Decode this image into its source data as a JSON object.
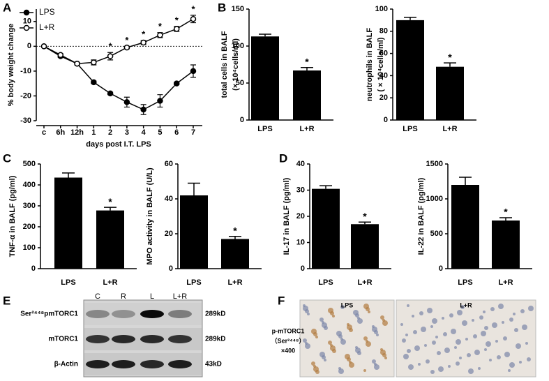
{
  "chart_data": [
    {
      "type": "line",
      "xlabel": "days post I.T. LPS",
      "ylabel": "% body weight change",
      "categories": [
        "c",
        "6h",
        "12h",
        "1",
        "2",
        "3",
        "4",
        "5",
        "6",
        "7"
      ],
      "series": [
        {
          "name": "LPS",
          "color": "#000000",
          "marker": "filled",
          "values": [
            0,
            -4,
            -7,
            -14.5,
            -19,
            -22.5,
            -25.5,
            -22,
            -15,
            -10
          ],
          "errors": [
            0,
            0.5,
            0.5,
            0.5,
            0.5,
            2,
            2,
            2.5,
            0.5,
            2.5
          ]
        },
        {
          "name": "L+R",
          "color": "#000000",
          "marker": "open",
          "values": [
            0,
            -3.5,
            -7,
            -6.5,
            -4,
            -0.5,
            1.5,
            4.5,
            7,
            11
          ],
          "errors": [
            0,
            0.5,
            0.5,
            1,
            1.5,
            0.5,
            0.8,
            1,
            1,
            1.5
          ]
        }
      ],
      "significance": [
        null,
        null,
        null,
        null,
        "*",
        "*",
        "*",
        "*",
        "*",
        "*"
      ],
      "ylim": [
        -30,
        15
      ],
      "yticks": [
        -30,
        -20,
        -10,
        0,
        10
      ],
      "reference_line": 0,
      "legend": "upper left"
    },
    {
      "type": "bar",
      "ylabel": [
        "total cells in BALF",
        "(× 10⁴cells/ml)"
      ],
      "categories": [
        "LPS",
        "L+R"
      ],
      "values": [
        113,
        67
      ],
      "errors": [
        3,
        4
      ],
      "color": "#000000",
      "significance": [
        null,
        "*"
      ],
      "ylim": [
        0,
        150
      ],
      "yticks": [
        0,
        50,
        100,
        150
      ]
    },
    {
      "type": "bar",
      "ylabel": [
        "neutrophils in BALF",
        "( × 10⁴cells/ml)"
      ],
      "categories": [
        "LPS",
        "L+R"
      ],
      "values": [
        90,
        48
      ],
      "errors": [
        2.5,
        3.5
      ],
      "color": "#000000",
      "significance": [
        null,
        "*"
      ],
      "ylim": [
        0,
        100
      ],
      "yticks": [
        0,
        20,
        40,
        60,
        80,
        100
      ]
    },
    {
      "type": "bar",
      "ylabel": [
        "TNF-α  in BALF (pg/ml)"
      ],
      "categories": [
        "LPS",
        "L+R"
      ],
      "values": [
        435,
        278
      ],
      "errors": [
        22,
        15
      ],
      "color": "#000000",
      "significance": [
        null,
        "*"
      ],
      "ylim": [
        0,
        500
      ],
      "yticks": [
        0,
        100,
        200,
        300,
        400,
        500
      ]
    },
    {
      "type": "bar",
      "ylabel": [
        "MPO activity in BALF (U/L)"
      ],
      "categories": [
        "LPS",
        "L+R"
      ],
      "values": [
        42,
        17
      ],
      "errors": [
        7,
        1.5
      ],
      "color": "#000000",
      "significance": [
        null,
        "*"
      ],
      "ylim": [
        0,
        60
      ],
      "yticks": [
        0,
        20,
        40,
        60
      ]
    },
    {
      "type": "bar",
      "ylabel": [
        "IL-17 in BALF (pg/ml)"
      ],
      "categories": [
        "LPS",
        "L+R"
      ],
      "values": [
        30.5,
        17
      ],
      "errors": [
        1.2,
        0.8
      ],
      "color": "#000000",
      "significance": [
        null,
        "*"
      ],
      "ylim": [
        0,
        40
      ],
      "yticks": [
        0,
        10,
        20,
        30,
        40
      ]
    },
    {
      "type": "bar",
      "ylabel": [
        "IL-22 in BALF (pg/ml)"
      ],
      "categories": [
        "LPS",
        "L+R"
      ],
      "values": [
        1200,
        690
      ],
      "errors": [
        110,
        40
      ],
      "color": "#000000",
      "significance": [
        null,
        "*"
      ],
      "ylim": [
        0,
        1500
      ],
      "yticks": [
        0,
        500,
        1000,
        1500
      ]
    }
  ],
  "panel_labels": [
    "A",
    "B",
    "C",
    "D",
    "E",
    "F"
  ],
  "western_blot": {
    "lanes": [
      "C",
      "R",
      "L",
      "L+R"
    ],
    "rows": [
      {
        "label": "Ser²⁴⁴⁸pmTORC1",
        "size": "289kD"
      },
      {
        "label": "mTORC1",
        "size": "289kD"
      },
      {
        "label": "β-Actin",
        "size": "43kD"
      }
    ]
  },
  "histology": {
    "groups": [
      "LPS",
      "L+R"
    ],
    "stain_label": [
      "p-mTORC1",
      "（Ser²⁴⁴⁸）",
      "×400"
    ]
  }
}
